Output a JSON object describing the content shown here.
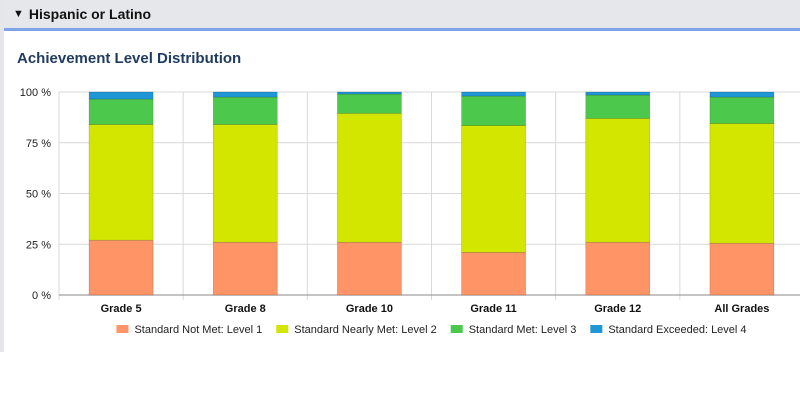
{
  "section": {
    "toggle_icon": "▼",
    "title": "Hispanic or Latino"
  },
  "chart_data": {
    "type": "bar",
    "stacked": true,
    "title": "Achievement Level Distribution",
    "categories": [
      "Grade 5",
      "Grade 8",
      "Grade 10",
      "Grade 11",
      "Grade 12",
      "All Grades"
    ],
    "y_ticks": [
      "0 %",
      "25 %",
      "50 %",
      "75 %",
      "100 %"
    ],
    "ylim": [
      0,
      100
    ],
    "series": [
      {
        "name": "Standard Not Met: Level 1",
        "color": "#ff9466",
        "values": [
          27,
          26,
          26,
          21,
          26,
          25.5
        ]
      },
      {
        "name": "Standard Nearly Met: Level 2",
        "color": "#d2e600",
        "values": [
          57,
          58,
          63.5,
          62.5,
          61,
          59
        ]
      },
      {
        "name": "Standard Met: Level 3",
        "color": "#4cc94c",
        "values": [
          12.5,
          13.5,
          9.5,
          14.5,
          11.5,
          13
        ]
      },
      {
        "name": "Standard Exceeded: Level 4",
        "color": "#1f96d6",
        "values": [
          3.5,
          2.5,
          1,
          2,
          1.5,
          2.5
        ]
      }
    ],
    "grid": true,
    "legend_position": "bottom"
  }
}
